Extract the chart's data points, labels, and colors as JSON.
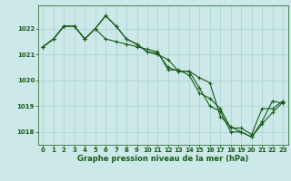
{
  "title": "Graphe pression niveau de la mer (hPa)",
  "bg_color": "#cce8e8",
  "line_color": "#1a5c1a",
  "grid_color": "#aad0d0",
  "x_ticks": [
    0,
    1,
    2,
    3,
    4,
    5,
    6,
    7,
    8,
    9,
    10,
    11,
    12,
    13,
    14,
    15,
    16,
    17,
    18,
    19,
    20,
    21,
    22,
    23
  ],
  "ylim": [
    1017.5,
    1022.9
  ],
  "y_ticks": [
    1018,
    1019,
    1020,
    1021,
    1022
  ],
  "series1": [
    1021.3,
    1021.6,
    1022.1,
    1022.1,
    1021.6,
    1022.0,
    1022.5,
    1022.1,
    1021.6,
    1021.4,
    1021.1,
    1021.0,
    1020.8,
    1020.35,
    1020.35,
    1019.7,
    1019.0,
    1018.8,
    1018.0,
    1018.0,
    1017.8,
    1018.4,
    1019.2,
    1019.1
  ],
  "series2": [
    1021.3,
    1021.6,
    1022.1,
    1022.1,
    1021.6,
    1022.0,
    1021.6,
    1021.5,
    1021.4,
    1021.3,
    1021.2,
    1021.1,
    1020.4,
    1020.4,
    1020.2,
    1019.5,
    1019.3,
    1018.9,
    1018.15,
    1018.15,
    1017.9,
    1018.9,
    1018.9,
    1019.2
  ],
  "series3": [
    1021.3,
    1021.6,
    1022.1,
    1022.1,
    1021.6,
    1022.0,
    1022.5,
    1022.1,
    1021.6,
    1021.4,
    1021.1,
    1021.05,
    1020.5,
    1020.35,
    1020.35,
    1020.1,
    1019.9,
    1018.6,
    1018.2,
    1018.0,
    1017.8,
    1018.3,
    1018.75,
    1019.15
  ],
  "marker": "+",
  "marker_size": 3,
  "linewidth": 0.8,
  "tick_fontsize": 5,
  "label_fontsize": 6
}
